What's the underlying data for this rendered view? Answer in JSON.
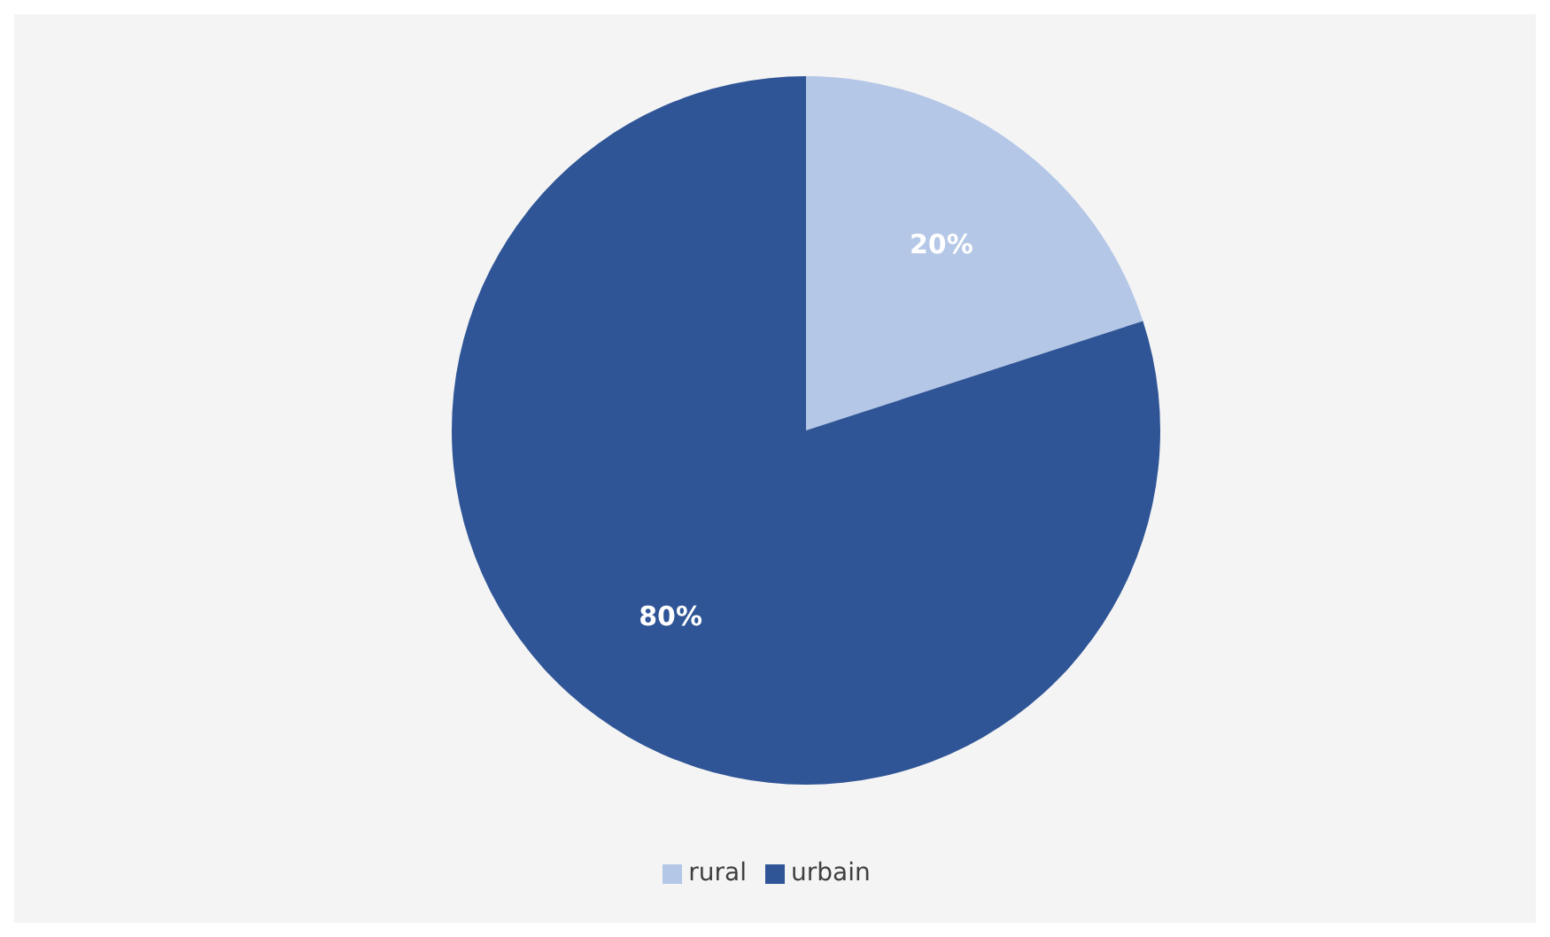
{
  "chart_data": {
    "type": "pie",
    "categories": [
      "rural",
      "urbain"
    ],
    "values": [
      20,
      80
    ],
    "colors": [
      "#b4c7e7",
      "#2f5597"
    ],
    "value_labels": [
      "20%",
      "80%"
    ],
    "legend": "bottom"
  }
}
